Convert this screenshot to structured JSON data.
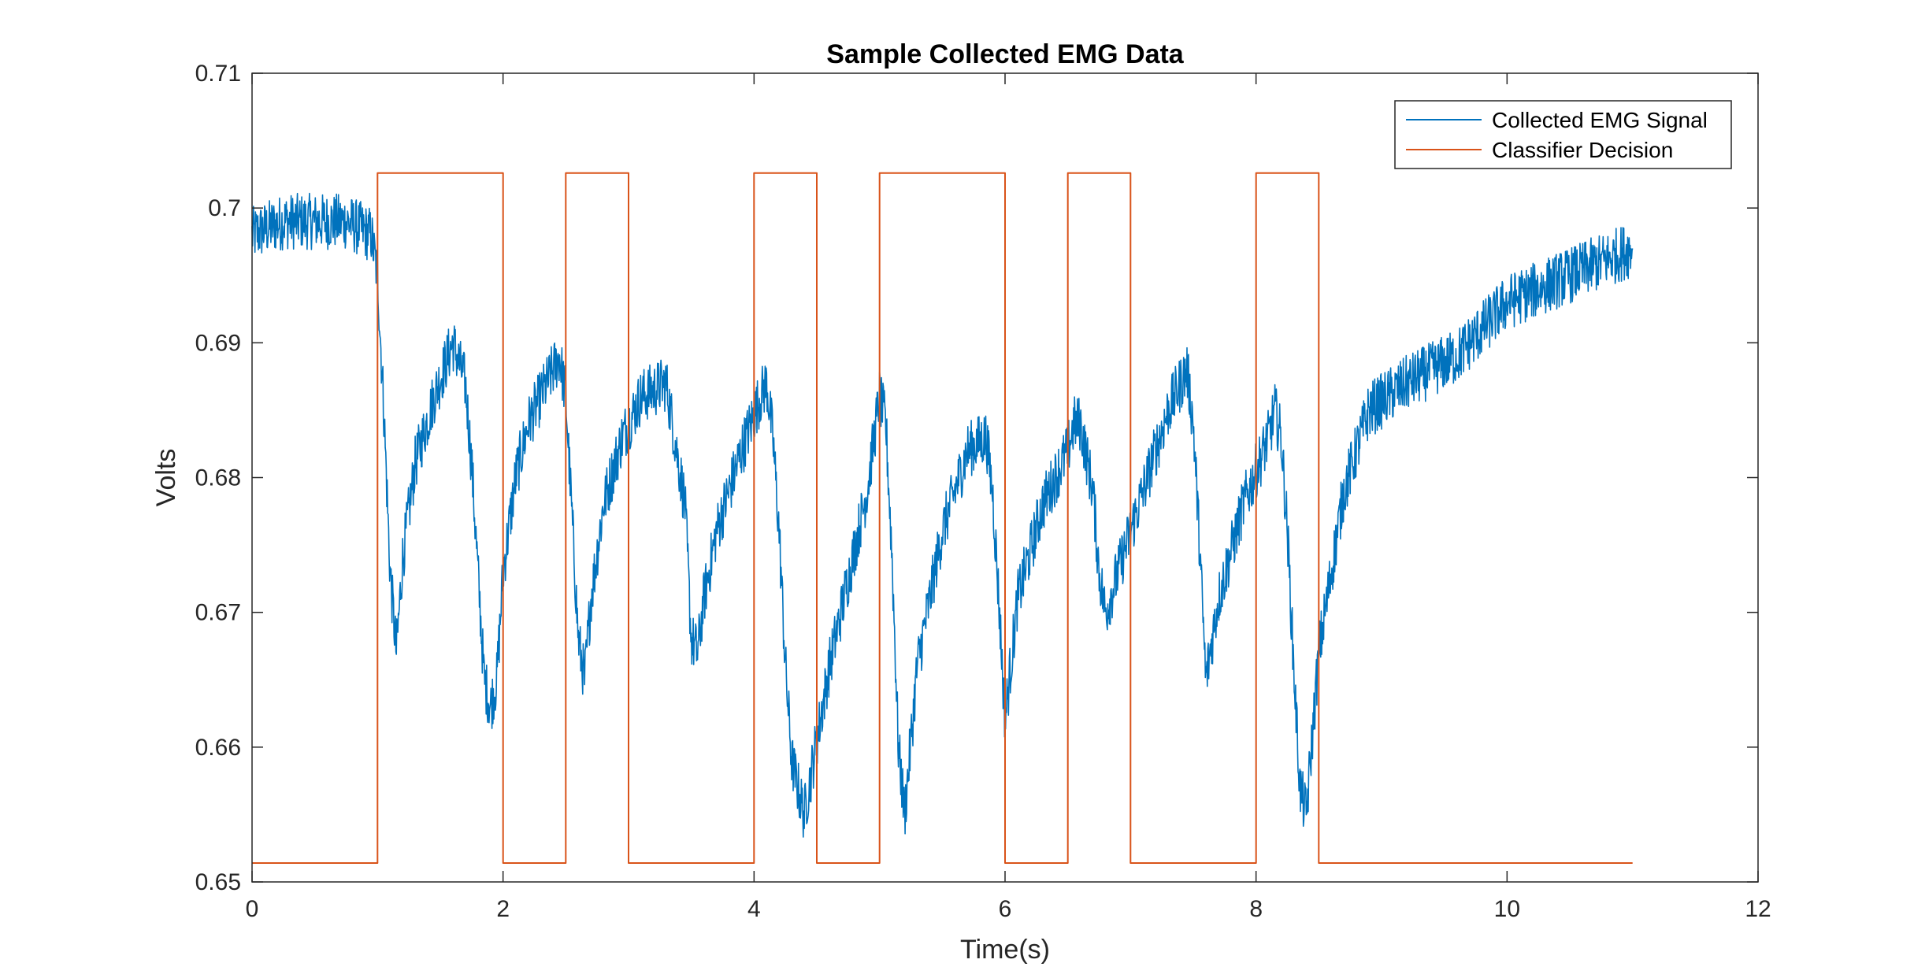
{
  "chart_data": {
    "type": "line",
    "title": "Sample Collected EMG Data",
    "xlabel": "Time(s)",
    "ylabel": "Volts",
    "xlim": [
      0,
      12
    ],
    "ylim": [
      0.65,
      0.71
    ],
    "xticks": [
      0,
      2,
      4,
      6,
      8,
      10,
      12
    ],
    "xtick_labels": [
      "0",
      "2",
      "4",
      "6",
      "8",
      "10",
      "12"
    ],
    "yticks": [
      0.65,
      0.66,
      0.67,
      0.68,
      0.69,
      0.7,
      0.71
    ],
    "ytick_labels": [
      "0.65",
      "0.66",
      "0.67",
      "0.68",
      "0.69",
      "0.7",
      "0.71"
    ],
    "grid": false,
    "legend_position": "top-right",
    "series": [
      {
        "name": "Collected EMG Signal",
        "color": "#0072BD",
        "x": [
          0,
          0.25,
          0.5,
          0.75,
          0.95,
          1.0,
          1.05,
          1.1,
          1.15,
          1.2,
          1.3,
          1.45,
          1.6,
          1.7,
          1.75,
          1.8,
          1.85,
          1.9,
          1.95,
          2.0,
          2.1,
          2.2,
          2.35,
          2.45,
          2.5,
          2.55,
          2.6,
          2.65,
          2.7,
          2.8,
          2.95,
          3.1,
          3.3,
          3.45,
          3.5,
          3.55,
          3.6,
          3.7,
          3.9,
          4.05,
          4.1,
          4.15,
          4.2,
          4.25,
          4.3,
          4.4,
          4.6,
          4.9,
          5.0,
          5.05,
          5.1,
          5.15,
          5.2,
          5.3,
          5.5,
          5.7,
          5.85,
          5.9,
          5.95,
          6.0,
          6.1,
          6.3,
          6.5,
          6.55,
          6.6,
          6.7,
          6.75,
          6.8,
          6.9,
          7.1,
          7.3,
          7.45,
          7.5,
          7.55,
          7.6,
          7.7,
          7.9,
          8.1,
          8.15,
          8.2,
          8.25,
          8.3,
          8.35,
          8.4,
          8.5,
          8.7,
          8.9,
          9.2,
          9.6,
          10.0,
          10.5,
          11.0
        ],
        "y": [
          0.698,
          0.699,
          0.699,
          0.699,
          0.698,
          0.695,
          0.685,
          0.673,
          0.667,
          0.674,
          0.681,
          0.686,
          0.69,
          0.687,
          0.681,
          0.673,
          0.665,
          0.663,
          0.665,
          0.673,
          0.68,
          0.684,
          0.687,
          0.689,
          0.686,
          0.677,
          0.668,
          0.665,
          0.671,
          0.678,
          0.683,
          0.686,
          0.687,
          0.678,
          0.668,
          0.667,
          0.671,
          0.676,
          0.682,
          0.686,
          0.687,
          0.683,
          0.676,
          0.666,
          0.659,
          0.655,
          0.666,
          0.679,
          0.686,
          0.684,
          0.674,
          0.66,
          0.655,
          0.666,
          0.676,
          0.682,
          0.683,
          0.679,
          0.671,
          0.662,
          0.671,
          0.678,
          0.682,
          0.684,
          0.684,
          0.679,
          0.673,
          0.67,
          0.673,
          0.679,
          0.685,
          0.688,
          0.684,
          0.675,
          0.665,
          0.671,
          0.678,
          0.683,
          0.685,
          0.683,
          0.676,
          0.666,
          0.657,
          0.655,
          0.667,
          0.679,
          0.685,
          0.687,
          0.689,
          0.693,
          0.695,
          0.697
        ]
      },
      {
        "name": "Classifier Decision",
        "color": "#D95319",
        "x": [
          0,
          1.0,
          1.0,
          2.0,
          2.0,
          2.5,
          2.5,
          3.0,
          3.0,
          4.0,
          4.0,
          4.5,
          4.5,
          5.0,
          5.0,
          6.0,
          6.0,
          6.5,
          6.5,
          7.0,
          7.0,
          8.0,
          8.0,
          8.5,
          8.5,
          11.0
        ],
        "y": [
          0.6514,
          0.6514,
          0.7026,
          0.7026,
          0.6514,
          0.6514,
          0.7026,
          0.7026,
          0.6514,
          0.6514,
          0.7026,
          0.7026,
          0.6514,
          0.6514,
          0.7026,
          0.7026,
          0.6514,
          0.6514,
          0.7026,
          0.7026,
          0.6514,
          0.6514,
          0.7026,
          0.7026,
          0.6514,
          0.6514
        ]
      }
    ]
  }
}
